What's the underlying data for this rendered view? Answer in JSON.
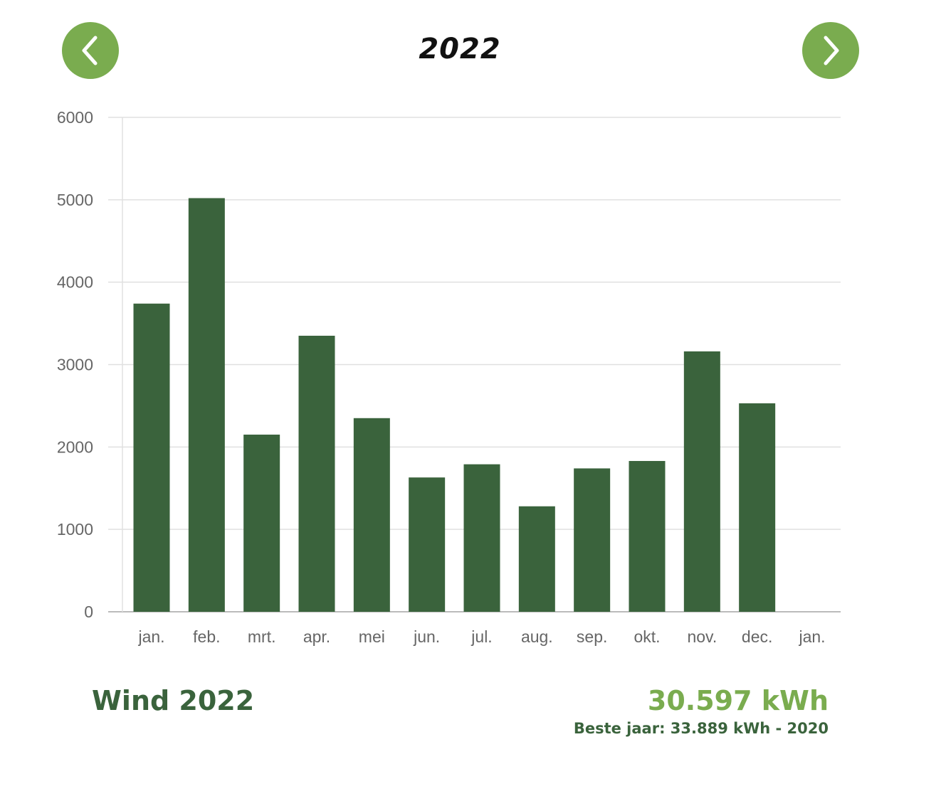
{
  "header": {
    "year": "2022",
    "prev_icon": "chevron-left-icon",
    "next_icon": "chevron-right-icon"
  },
  "colors": {
    "bar": "#3a633c",
    "accent": "#7aac4f",
    "grid": "#e0e0e0",
    "axis": "#bbbbbb",
    "tick_text": "#666666"
  },
  "chart_data": {
    "type": "bar",
    "categories": [
      "jan.",
      "feb.",
      "mrt.",
      "apr.",
      "mei",
      "jun.",
      "jul.",
      "aug.",
      "sep.",
      "okt.",
      "nov.",
      "dec.",
      "jan."
    ],
    "values": [
      3740,
      5020,
      2150,
      3350,
      2350,
      1630,
      1790,
      1280,
      1740,
      1830,
      3160,
      2530,
      null
    ],
    "yticks": [
      0,
      1000,
      2000,
      3000,
      4000,
      5000,
      6000
    ],
    "ylim": [
      0,
      6000
    ],
    "grid": true,
    "legend": "none"
  },
  "summary": {
    "title": "Wind 2022",
    "total": "30.597 kWh",
    "best": "Beste jaar: 33.889 kWh - 2020"
  }
}
